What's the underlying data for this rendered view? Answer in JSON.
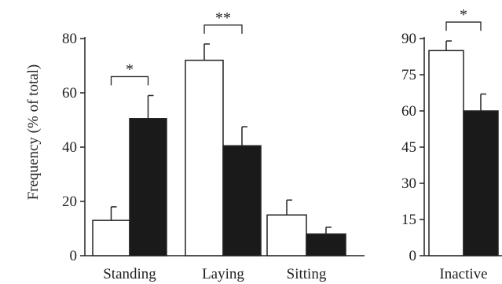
{
  "chart_data": [
    {
      "type": "bar",
      "title": "",
      "xlabel": "",
      "ylabel": "Frequency (% of total)",
      "ylim": [
        0,
        80
      ],
      "yticks": [
        0,
        20,
        40,
        60,
        80
      ],
      "categories": [
        "Standing",
        "Laying",
        "Sitting"
      ],
      "series": [
        {
          "color": "#ffffff",
          "values": [
            13,
            72,
            15
          ],
          "errors": [
            5,
            6,
            5.5
          ]
        },
        {
          "color": "#1a1a1a",
          "values": [
            50.5,
            40.5,
            8
          ],
          "errors": [
            8.5,
            7,
            2.5
          ]
        }
      ],
      "significance": [
        {
          "category": "Standing",
          "label": "*"
        },
        {
          "category": "Laying",
          "label": "**"
        }
      ]
    },
    {
      "type": "bar",
      "title": "",
      "xlabel": "",
      "ylabel": "",
      "ylim": [
        0,
        90
      ],
      "yticks": [
        0,
        15,
        30,
        45,
        60,
        75,
        90
      ],
      "categories": [
        "Inactive"
      ],
      "series": [
        {
          "color": "#ffffff",
          "values": [
            85
          ],
          "errors": [
            4
          ]
        },
        {
          "color": "#1a1a1a",
          "values": [
            60
          ],
          "errors": [
            7
          ]
        }
      ],
      "significance": [
        {
          "category": "Inactive",
          "label": "*"
        }
      ]
    }
  ]
}
